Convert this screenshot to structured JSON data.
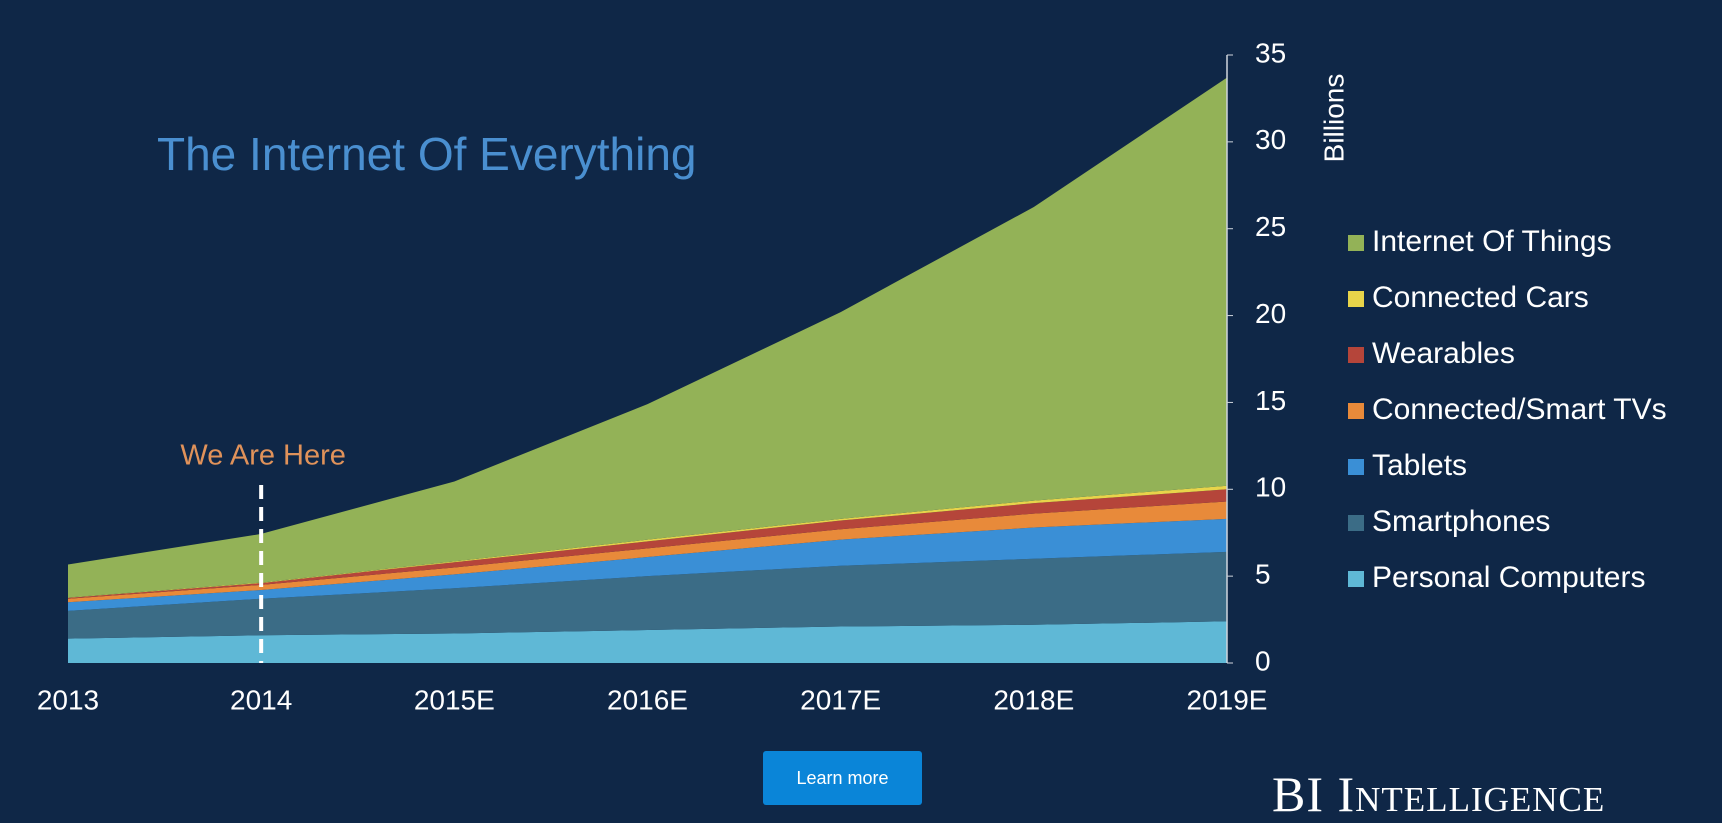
{
  "chart_data": {
    "type": "stacked-area",
    "title": "The Internet Of Everything",
    "annotation": "We Are Here",
    "y_label": "Billions",
    "categories": [
      "2013",
      "2014",
      "2015E",
      "2016E",
      "2017E",
      "2018E",
      "2019E"
    ],
    "series": [
      {
        "name": "Personal Computers",
        "color": "#5fb8d6",
        "values": [
          1.4,
          1.6,
          1.7,
          1.9,
          2.1,
          2.2,
          2.4
        ]
      },
      {
        "name": "Smartphones",
        "color": "#3b6c86",
        "values": [
          1.6,
          2.1,
          2.6,
          3.1,
          3.5,
          3.8,
          4.0
        ]
      },
      {
        "name": "Tablets",
        "color": "#3a8fd6",
        "values": [
          0.5,
          0.5,
          0.8,
          1.1,
          1.5,
          1.8,
          1.9
        ]
      },
      {
        "name": "Connected/Smart TVs",
        "color": "#e88a3a",
        "values": [
          0.2,
          0.3,
          0.4,
          0.5,
          0.6,
          0.8,
          1.0
        ]
      },
      {
        "name": "Wearables",
        "color": "#b5453a",
        "values": [
          0.05,
          0.1,
          0.3,
          0.4,
          0.5,
          0.6,
          0.7
        ]
      },
      {
        "name": "Connected Cars",
        "color": "#e8d44a",
        "values": [
          0.02,
          0.03,
          0.05,
          0.1,
          0.1,
          0.15,
          0.2
        ]
      },
      {
        "name": "Internet Of Things",
        "color": "#93b257",
        "values": [
          1.9,
          2.8,
          4.6,
          7.8,
          11.9,
          16.9,
          23.5
        ]
      }
    ],
    "ylim": [
      0,
      35
    ],
    "yticks": [
      0,
      5,
      10,
      15,
      20,
      25,
      30,
      35
    ],
    "y_axis_side": "right",
    "legend": "right"
  },
  "button": "Learn more",
  "brand": "BI Intelligence"
}
